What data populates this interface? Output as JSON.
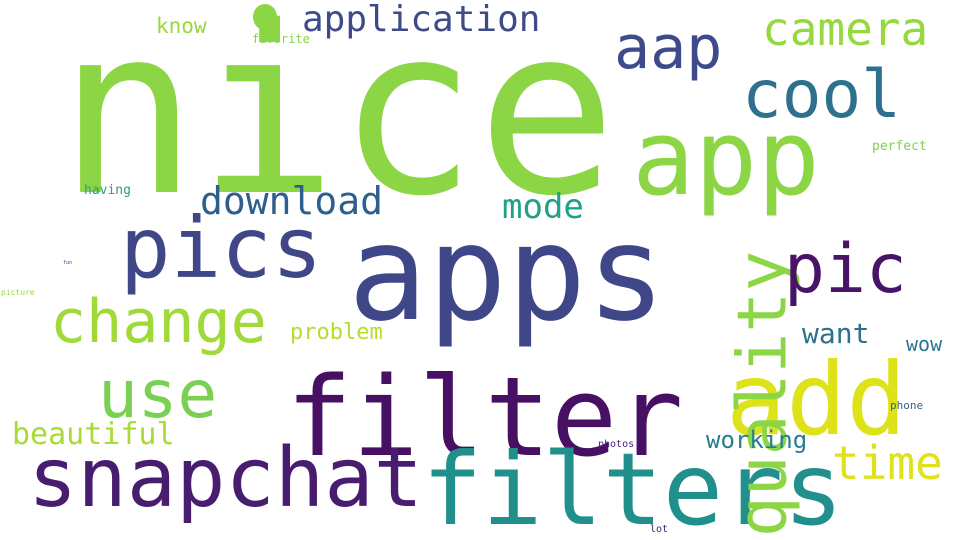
{
  "words": [
    {
      "text": "nice",
      "color": "#8cd645"
    },
    {
      "text": "apps",
      "color": "#3f4788"
    },
    {
      "text": "filter",
      "color": "#471063"
    },
    {
      "text": "filters",
      "color": "#21908d"
    },
    {
      "text": "snapchat",
      "color": "#481d6f"
    },
    {
      "text": "app",
      "color": "#8cd645"
    },
    {
      "text": "pics",
      "color": "#3f4788"
    },
    {
      "text": "add",
      "color": "#dde318"
    },
    {
      "text": "quality",
      "color": "#8cd645"
    },
    {
      "text": "pic",
      "color": "#481467"
    },
    {
      "text": "change",
      "color": "#a0da39"
    },
    {
      "text": "cool",
      "color": "#2d718e"
    },
    {
      "text": "use",
      "color": "#7ad151"
    },
    {
      "text": "aap",
      "color": "#3e4a89"
    },
    {
      "text": "camera",
      "color": "#95d840"
    },
    {
      "text": "application",
      "color": "#3e4a89"
    },
    {
      "text": "download",
      "color": "#2d5f8e"
    },
    {
      "text": "mode",
      "color": "#1fa187"
    },
    {
      "text": "time",
      "color": "#dde318"
    },
    {
      "text": "beautiful",
      "color": "#a8db34"
    },
    {
      "text": "want",
      "color": "#2d718e"
    },
    {
      "text": "working",
      "color": "#287d8e"
    },
    {
      "text": "problem",
      "color": "#b5de2b"
    },
    {
      "text": "know",
      "color": "#98d83e"
    },
    {
      "text": "wow",
      "color": "#2a768e"
    },
    {
      "text": "favorite",
      "color": "#86d549"
    },
    {
      "text": "having",
      "color": "#2a9d8a"
    },
    {
      "text": "perfect",
      "color": "#7fd34e"
    },
    {
      "text": "phone",
      "color": "#33638d"
    },
    {
      "text": "photos",
      "color": "#482374"
    },
    {
      "text": "lot",
      "color": "#481f70"
    },
    {
      "text": "picture",
      "color": "#9bd93c"
    },
    {
      "text": "fun",
      "color": "#3b518b"
    }
  ]
}
